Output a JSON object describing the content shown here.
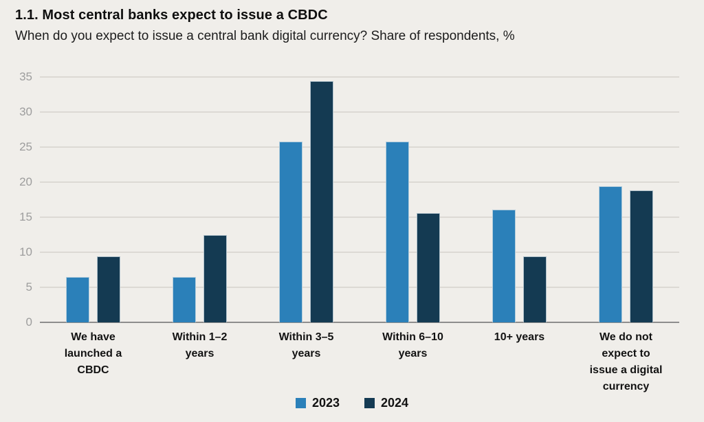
{
  "header": {
    "title": "1.1. Most central banks expect to issue a CBDC",
    "subtitle": "When do you expect to issue a central bank digital currency? Share of respondents, %"
  },
  "chart_data": {
    "type": "bar",
    "title": "1.1. Most central banks expect to issue a CBDC",
    "subtitle": "When do you expect to issue a central bank digital currency? Share of respondents, %",
    "categories": [
      "We have\nlaunched a\nCBDC",
      "Within 1–2\nyears",
      "Within 3–5\nyears",
      "Within 6–10\nyears",
      "10+ years",
      "We do not\nexpect to\nissue a digital\ncurrency"
    ],
    "series": [
      {
        "name": "2023",
        "color": "#2b80b9",
        "values": [
          6.5,
          6.5,
          25.8,
          25.8,
          16.1,
          19.4
        ]
      },
      {
        "name": "2024",
        "color": "#143a52",
        "values": [
          9.4,
          12.5,
          34.4,
          15.6,
          9.4,
          18.8
        ]
      }
    ],
    "xlabel": "",
    "ylabel": "Share of respondents, %",
    "ylim": [
      0,
      35
    ],
    "yticks": [
      0,
      5,
      10,
      15,
      20,
      25,
      30,
      35
    ],
    "grid": true,
    "legend_position": "bottom",
    "background_color": "#f0eeea",
    "gridline_color": "#dcd9d4",
    "baseline_color": "#8d8d8d",
    "tick_label_color": "#9d9d9d"
  }
}
